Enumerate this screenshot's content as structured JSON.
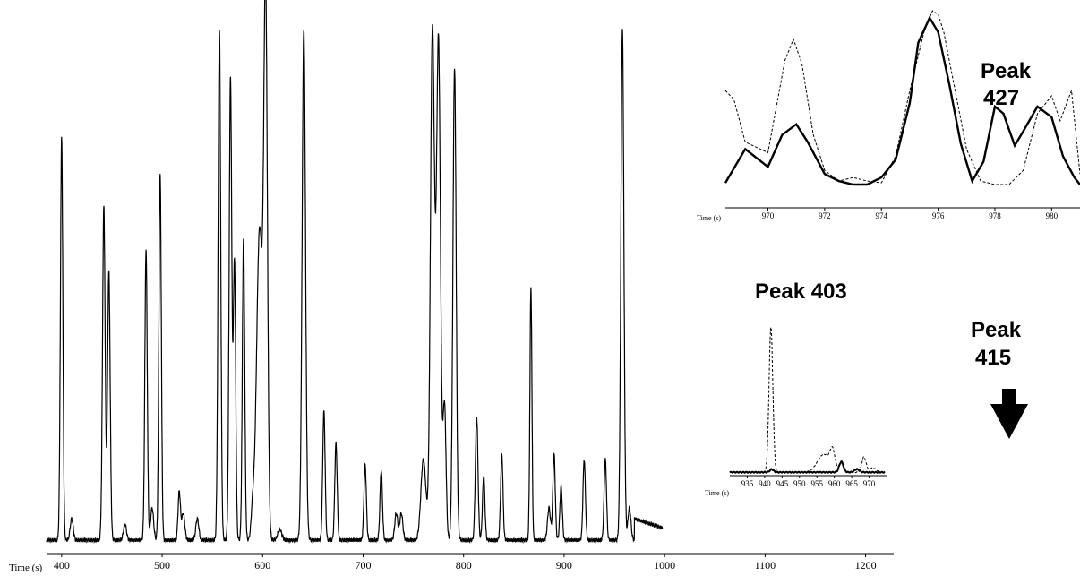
{
  "chart_data": [
    {
      "id": "main",
      "type": "line",
      "xlabel": "Time (s)",
      "xlim": [
        385,
        1228
      ],
      "ylim": [
        0,
        100
      ],
      "ticks": [
        400,
        500,
        600,
        700,
        800,
        900,
        1000,
        1100,
        1200
      ],
      "baseline": 1.5,
      "peaks": [
        [
          400,
          75,
          1.2
        ],
        [
          410,
          4,
          1.5
        ],
        [
          442,
          62,
          1.3
        ],
        [
          447,
          50,
          1.3
        ],
        [
          463,
          3,
          1.5
        ],
        [
          484,
          54,
          1.2
        ],
        [
          490,
          6,
          1.5
        ],
        [
          498,
          68,
          1.2
        ],
        [
          517,
          9,
          1.2
        ],
        [
          521,
          5,
          1.5
        ],
        [
          535,
          4,
          1.5
        ],
        [
          557,
          95,
          1.3
        ],
        [
          568,
          86,
          1.3
        ],
        [
          572,
          52,
          1.2
        ],
        [
          581,
          56,
          1.2
        ],
        [
          590,
          5,
          1.5
        ],
        [
          597,
          58,
          3.0
        ],
        [
          603,
          98,
          1.8
        ],
        [
          617,
          2,
          2.0
        ],
        [
          641,
          95,
          1.7
        ],
        [
          661,
          24,
          1.2
        ],
        [
          673,
          18,
          1.2
        ],
        [
          702,
          14,
          1.2
        ],
        [
          718,
          13,
          1.2
        ],
        [
          733,
          5,
          1.5
        ],
        [
          738,
          5,
          1.5
        ],
        [
          760,
          15,
          2.5
        ],
        [
          769,
          95,
          2.0
        ],
        [
          775,
          93,
          2.0
        ],
        [
          781,
          25,
          1.5
        ],
        [
          791,
          88,
          1.6
        ],
        [
          813,
          23,
          1.3
        ],
        [
          820,
          12,
          1.2
        ],
        [
          838,
          16,
          1.2
        ],
        [
          867,
          47,
          1.0
        ],
        [
          885,
          6,
          1.5
        ],
        [
          890,
          16,
          1.2
        ],
        [
          897,
          10,
          1.2
        ],
        [
          920,
          15,
          1.2
        ],
        [
          941,
          15,
          1.2
        ],
        [
          958,
          95,
          1.5
        ],
        [
          965,
          6,
          1.5
        ]
      ],
      "tail": [
        [
          970,
          4.0
        ],
        [
          1010,
          1.5
        ],
        [
          1228,
          0.5
        ]
      ]
    },
    {
      "id": "inset-427",
      "type": "line",
      "xlabel": "Time (s)",
      "xlim": [
        968.5,
        981
      ],
      "ylim": [
        0,
        100
      ],
      "ticks": [
        970,
        972,
        974,
        976,
        978,
        980
      ],
      "series": [
        {
          "style": "solid",
          "x": [
            968.5,
            969.2,
            970.0,
            970.5,
            971.0,
            971.4,
            972.0,
            972.5,
            973.0,
            973.5,
            974.0,
            974.5,
            975.0,
            975.3,
            975.7,
            976.0,
            976.4,
            976.8,
            977.2,
            977.6,
            978.0,
            978.3,
            978.7,
            979.0,
            979.5,
            980.0,
            980.4,
            980.8,
            981.0
          ],
          "y": [
            3,
            22,
            12,
            30,
            36,
            26,
            8,
            4,
            2,
            2,
            6,
            16,
            48,
            82,
            96,
            88,
            58,
            25,
            4,
            15,
            46,
            42,
            24,
            32,
            46,
            40,
            18,
            6,
            2
          ]
        },
        {
          "style": "dashed",
          "x": [
            968.5,
            968.8,
            969.2,
            970.0,
            970.6,
            970.9,
            971.2,
            971.6,
            972.0,
            972.5,
            973.0,
            973.5,
            974.0,
            974.5,
            975.0,
            975.5,
            975.8,
            976.0,
            976.2,
            976.6,
            977.0,
            977.5,
            978.0,
            978.5,
            979.0,
            979.5,
            980.0,
            980.3,
            980.7,
            981.0
          ],
          "y": [
            55,
            50,
            26,
            20,
            72,
            84,
            70,
            30,
            10,
            4,
            6,
            4,
            3,
            18,
            55,
            88,
            100,
            98,
            88,
            55,
            22,
            4,
            2,
            2,
            10,
            42,
            52,
            38,
            55,
            8
          ]
        }
      ]
    },
    {
      "id": "inset-403-415",
      "type": "line",
      "xlabel": "Time (s)",
      "xlim": [
        930,
        975
      ],
      "ylim": [
        0,
        100
      ],
      "ticks": [
        935,
        940,
        945,
        950,
        955,
        960,
        965,
        970
      ],
      "series": [
        {
          "style": "solid",
          "baseline": 0.5,
          "peaks": [
            [
              942,
              2,
              0.5
            ],
            [
              962,
              7,
              0.6
            ],
            [
              966.5,
              2,
              0.7
            ]
          ]
        },
        {
          "style": "dashed",
          "baseline": 0.5,
          "peaks": [
            [
              941.8,
              96,
              0.55
            ],
            [
              957,
              12,
              1.8
            ],
            [
              959.5,
              12,
              0.7
            ],
            [
              962,
              6,
              0.6
            ],
            [
              968.5,
              10,
              0.6
            ],
            [
              971,
              3,
              1.0
            ]
          ]
        }
      ]
    }
  ],
  "annotations": {
    "peak427_line1": "Peak",
    "peak427_line2": "427",
    "peak403": "Peak 403",
    "peak415_line1": "Peak",
    "peak415_line2": "415",
    "arrow_color": "#000000"
  }
}
